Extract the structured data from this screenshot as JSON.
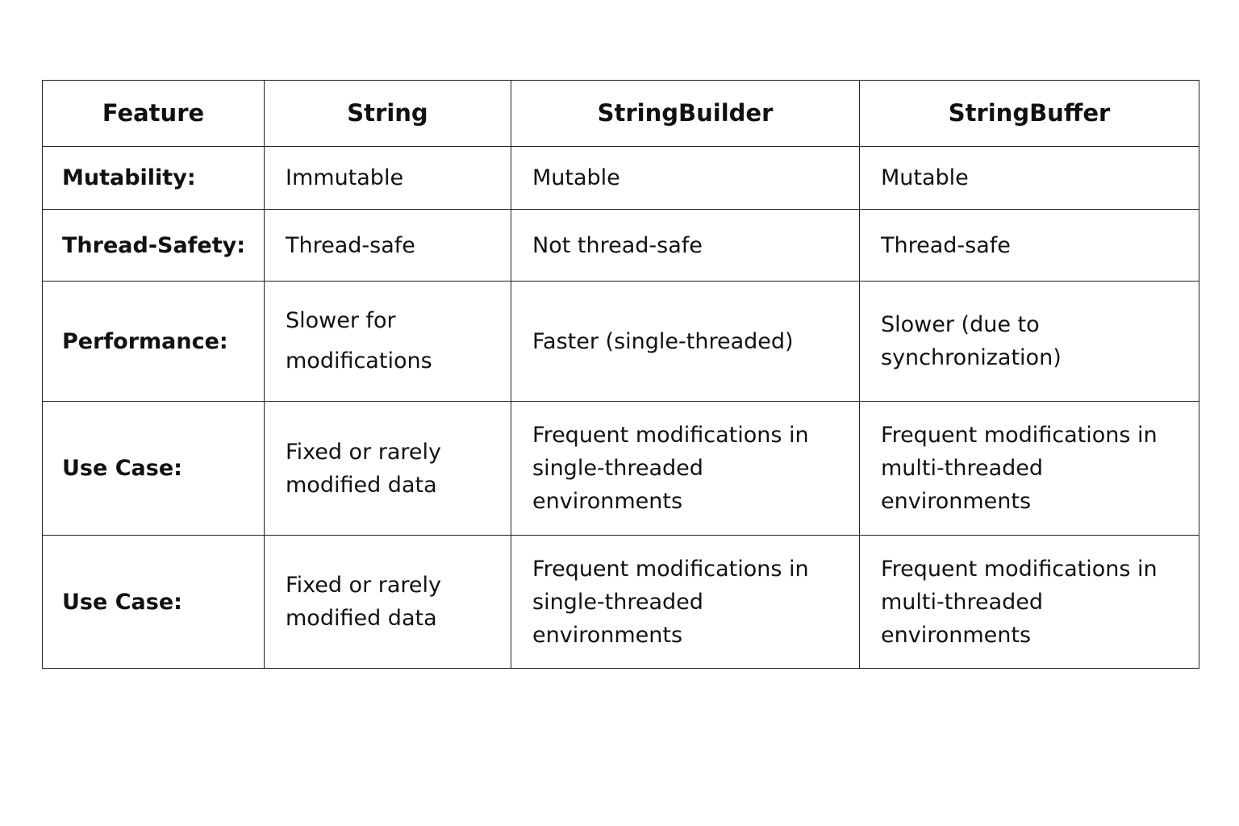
{
  "headers": [
    "Feature",
    "String",
    "StringBuilder",
    "StringBuffer"
  ],
  "rows": [
    [
      "Mutability:",
      "Immutable",
      "Mutable",
      "Mutable"
    ],
    [
      "Thread-Safety:",
      "Thread-safe",
      "Not thread-safe",
      "Thread-safe"
    ],
    [
      "Performance:",
      "Slower for modifications",
      "Faster (single-threaded)",
      "Slower (due to synchronization)"
    ],
    [
      "Use Case:",
      "Fixed or rarely modified data",
      "Frequent modifications in single-threaded environments",
      "Frequent modifications in multi-threaded environments"
    ],
    [
      "Use Case:",
      "Fixed or rarely modified data",
      "Frequent modifications in single-threaded environments",
      "Frequent modifications in multi-threaded environments"
    ]
  ]
}
